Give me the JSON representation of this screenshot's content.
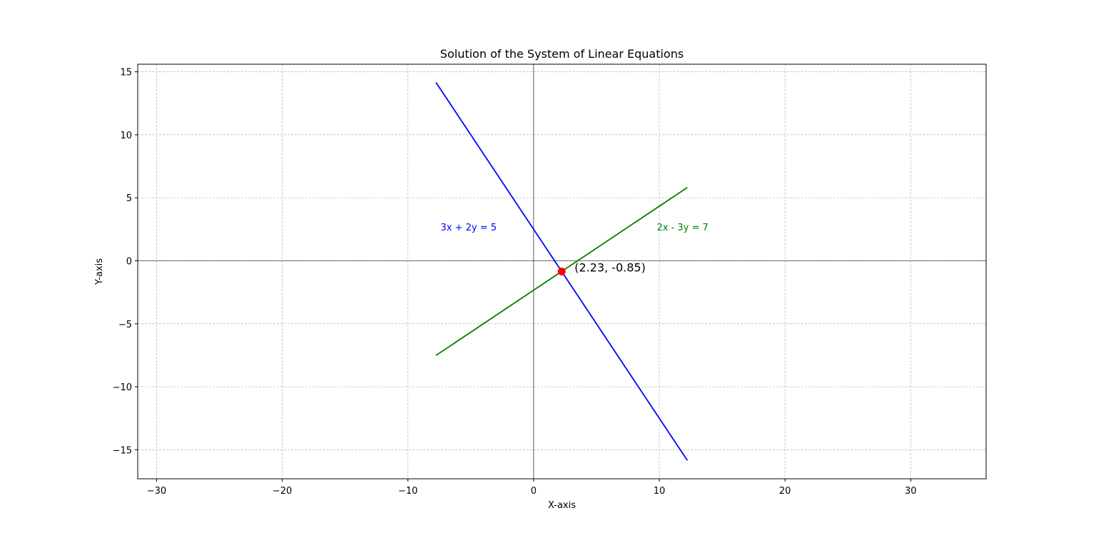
{
  "chart_data": {
    "type": "line",
    "title": "Solution of the System of Linear Equations",
    "xlabel": "X-axis",
    "ylabel": "Y-axis",
    "xlim": [
      -31.5,
      36
    ],
    "ylim": [
      -17.3,
      15.6
    ],
    "xticks": [
      -30,
      -20,
      -10,
      0,
      10,
      20,
      30
    ],
    "yticks": [
      -15,
      -10,
      -5,
      0,
      5,
      10,
      15
    ],
    "grid": true,
    "series": [
      {
        "name": "3x + 2y = 5",
        "color": "#0000ff",
        "x": [
          -7.77,
          12.23
        ],
        "y": [
          14.155,
          -15.845
        ]
      },
      {
        "name": "2x - 3y = 7",
        "color": "#008000",
        "x": [
          -7.77,
          12.23
        ],
        "y": [
          -7.513,
          5.82
        ]
      }
    ],
    "annotations": [
      {
        "text": "3x + 2y = 5",
        "x": -7.4,
        "y": 2.7,
        "color": "#0000ff"
      },
      {
        "text": "2x - 3y = 7",
        "x": 9.8,
        "y": 2.7,
        "color": "#008000"
      }
    ],
    "solution_point": {
      "x": 2.23,
      "y": -0.85,
      "label": "(2.23, -0.85)",
      "color": "#ff0000"
    }
  }
}
